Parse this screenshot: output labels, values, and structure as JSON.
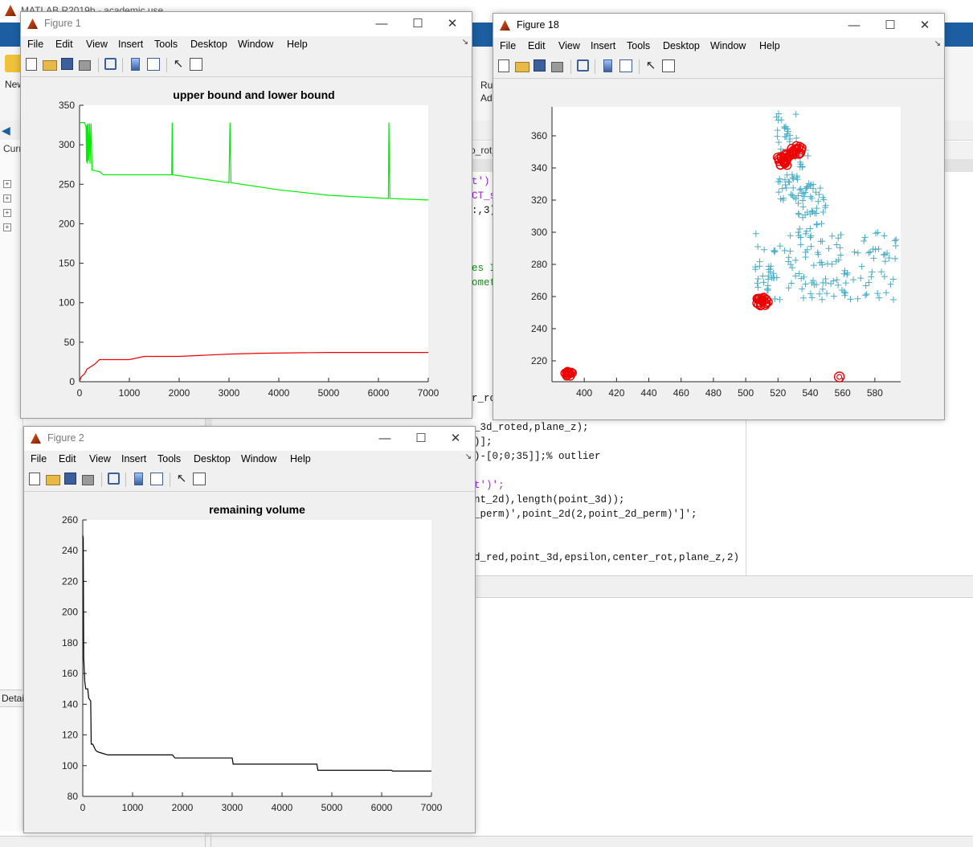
{
  "desktop": {
    "app_title": "MATLAB R2019b - academic use",
    "ribbon_new": "New",
    "ribbon_run": "Ru",
    "ribbon_run2": "Ad",
    "current_folder_short": "Curr",
    "details_short": "Detai",
    "editor_tab": "o_rot_",
    "code_right": [
      {
        "text": "t')",
        "color": "#a020f0"
      },
      {
        "text": "CT_s",
        "color": "#a020f0"
      },
      {
        "text": ":,3)",
        "color": "#111111"
      },
      {
        "text": "es I",
        "color": "#1a8a1a"
      },
      {
        "text": "omet",
        "color": "#1a8a1a"
      },
      {
        "text": "r_ro",
        "color": "#111111"
      }
    ],
    "code_lower": [
      {
        "text": "_3d_roted,plane_z);",
        "color": "#111111"
      },
      {
        "text": ")];",
        "color": "#111111"
      },
      {
        "text": ")-[0;0;35]];% outlier",
        "color": "#111111"
      },
      {
        "text": "t')';",
        "color": "#a020f0"
      },
      {
        "text": "nt_2d),length(point_3d));",
        "color": "#111111"
      },
      {
        "text": "_perm)',point_2d(2,point_2d_perm)']';",
        "color": "#111111"
      },
      {
        "text": "d_red,point_3d,epsilon,center_rot,plane_z,2)",
        "color": "#111111"
      }
    ]
  },
  "figures": {
    "fig1": {
      "title": "Figure 1",
      "menus": [
        "File",
        "Edit",
        "View",
        "Insert",
        "Tools",
        "Desktop",
        "Window",
        "Help"
      ]
    },
    "fig18": {
      "title": "Figure 18",
      "menus": [
        "File",
        "Edit",
        "View",
        "Insert",
        "Tools",
        "Desktop",
        "Window",
        "Help"
      ]
    },
    "fig2": {
      "title": "Figure 2",
      "menus": [
        "File",
        "Edit",
        "View",
        "Insert",
        "Tools",
        "Desktop",
        "Window",
        "Help"
      ]
    }
  },
  "chart_data": [
    {
      "id": "bounds",
      "type": "line",
      "title": "upper bound and lower bound",
      "xlim": [
        0,
        7000
      ],
      "ylim": [
        0,
        350
      ],
      "xticks": [
        0,
        1000,
        2000,
        3000,
        4000,
        5000,
        6000,
        7000
      ],
      "yticks": [
        0,
        50,
        100,
        150,
        200,
        250,
        300,
        350
      ],
      "series": [
        {
          "color": "#00ee00",
          "points": [
            [
              0,
              328
            ],
            [
              100,
              328
            ],
            [
              130,
              323
            ],
            [
              140,
              278
            ],
            [
              150,
              325
            ],
            [
              160,
              276
            ],
            [
              170,
              327
            ],
            [
              180,
              280
            ],
            [
              200,
              327
            ],
            [
              210,
              276
            ],
            [
              230,
              327
            ],
            [
              250,
              268
            ],
            [
              400,
              266
            ],
            [
              480,
              262
            ],
            [
              1800,
              262
            ],
            [
              1850,
              262
            ],
            [
              1860,
              328
            ],
            [
              1870,
              262
            ],
            [
              3000,
              252
            ],
            [
              3020,
              328
            ],
            [
              3040,
              252
            ],
            [
              4000,
              243
            ],
            [
              5000,
              236
            ],
            [
              6200,
              232
            ],
            [
              6210,
              328
            ],
            [
              6230,
              232
            ],
            [
              7000,
              230
            ]
          ]
        },
        {
          "color": "#ee0000",
          "points": [
            [
              0,
              0
            ],
            [
              30,
              6
            ],
            [
              100,
              10
            ],
            [
              150,
              16
            ],
            [
              300,
              22
            ],
            [
              400,
              28
            ],
            [
              1000,
              28
            ],
            [
              1300,
              32
            ],
            [
              2000,
              32
            ],
            [
              3000,
              35
            ],
            [
              3600,
              36
            ],
            [
              5000,
              37
            ],
            [
              7000,
              37
            ]
          ]
        }
      ]
    },
    {
      "id": "scatter",
      "type": "scatter",
      "title": "",
      "xlim": [
        380,
        596
      ],
      "ylim": [
        207,
        378
      ],
      "xticks": [
        400,
        420,
        440,
        460,
        480,
        500,
        520,
        540,
        560,
        580
      ],
      "yticks": [
        220,
        240,
        260,
        280,
        300,
        320,
        340,
        360
      ],
      "cyan_color": "#4bacc6",
      "red_color": "#ee0000",
      "red_clusters": [
        {
          "cx": 390,
          "cy": 212,
          "rx": 3,
          "ry": 2,
          "n": 14
        },
        {
          "cx": 510,
          "cy": 257,
          "rx": 4,
          "ry": 3,
          "n": 20
        },
        {
          "cx": 524,
          "cy": 345,
          "rx": 5,
          "ry": 4,
          "n": 26
        },
        {
          "cx": 532,
          "cy": 351,
          "rx": 4,
          "ry": 3,
          "n": 16
        }
      ],
      "red_marker": {
        "x": 558,
        "y": 210
      },
      "cyan_regions": [
        {
          "xmin": 518,
          "xmax": 532,
          "ymin": 355,
          "ymax": 374,
          "n": 20
        },
        {
          "xmin": 520,
          "xmax": 540,
          "ymin": 320,
          "ymax": 352,
          "n": 50
        },
        {
          "xmin": 532,
          "xmax": 550,
          "ymin": 300,
          "ymax": 330,
          "n": 40
        },
        {
          "xmin": 506,
          "xmax": 596,
          "ymin": 258,
          "ymax": 300,
          "n": 150
        }
      ]
    },
    {
      "id": "volume",
      "type": "line",
      "title": "remaining volume",
      "xlim": [
        0,
        7000
      ],
      "ylim": [
        80,
        260
      ],
      "xticks": [
        0,
        1000,
        2000,
        3000,
        4000,
        5000,
        6000,
        7000
      ],
      "yticks": [
        80,
        100,
        120,
        140,
        160,
        180,
        200,
        220,
        240,
        260
      ],
      "series": [
        {
          "color": "#000000",
          "points": [
            [
              0,
              250
            ],
            [
              10,
              248
            ],
            [
              20,
              170
            ],
            [
              40,
              155
            ],
            [
              60,
              150
            ],
            [
              100,
              150
            ],
            [
              120,
              144
            ],
            [
              160,
              142
            ],
            [
              170,
              114
            ],
            [
              200,
              114
            ],
            [
              260,
              110
            ],
            [
              300,
              109
            ],
            [
              400,
              108
            ],
            [
              500,
              107
            ],
            [
              1800,
              107
            ],
            [
              1850,
              105
            ],
            [
              3000,
              105
            ],
            [
              3020,
              101
            ],
            [
              4700,
              101
            ],
            [
              4720,
              97
            ],
            [
              6200,
              97
            ],
            [
              6220,
              96.5
            ],
            [
              7000,
              96.5
            ]
          ]
        }
      ]
    }
  ]
}
